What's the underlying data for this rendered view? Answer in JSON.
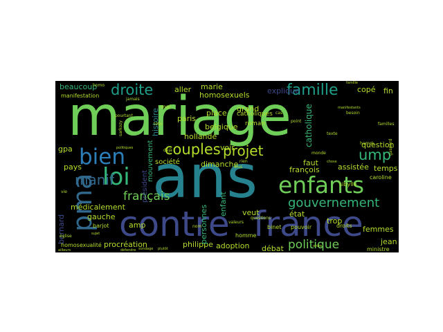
{
  "cloud": {
    "background": "#000000",
    "palette": [
      "#6ece58",
      "#35b779",
      "#1f9e89",
      "#26828e",
      "#31688e",
      "#3e4989",
      "#482878",
      "#440154",
      "#b5de2b",
      "#fde725"
    ],
    "words": [
      {
        "text": "mariage",
        "color": "#6ece58"
      },
      {
        "text": "ans",
        "color": "#26828e"
      },
      {
        "text": "contre",
        "color": "#3e4989"
      },
      {
        "text": "france",
        "color": "#3e4989"
      },
      {
        "text": "enfants",
        "color": "#6ece58"
      },
      {
        "text": "pma",
        "color": "#31688e"
      },
      {
        "text": "loi",
        "color": "#35b779"
      },
      {
        "text": "bien",
        "color": "#2c7fb8"
      },
      {
        "text": "couples",
        "color": "#b5de2b"
      },
      {
        "text": "projet",
        "color": "#b5de2b"
      },
      {
        "text": "famille",
        "color": "#1f9e89"
      },
      {
        "text": "droite",
        "color": "#1f9e89"
      },
      {
        "text": "ump",
        "color": "#35b779"
      },
      {
        "text": "manif",
        "color": "#31688e"
      },
      {
        "text": "gouvernement",
        "color": "#35b779"
      },
      {
        "text": "politique",
        "color": "#6ece58"
      },
      {
        "text": "français",
        "color": "#6ece58"
      },
      {
        "text": "histoire",
        "color": "#26828e"
      },
      {
        "text": "homosexuels",
        "color": "#b5de2b"
      },
      {
        "text": "explique",
        "color": "#3e4989"
      },
      {
        "text": "aller",
        "color": "#b5de2b"
      },
      {
        "text": "marie",
        "color": "#b5de2b"
      },
      {
        "text": "grand",
        "color": "#b5de2b"
      },
      {
        "text": "place",
        "color": "#b5de2b"
      },
      {
        "text": "paris",
        "color": "#b5de2b"
      },
      {
        "text": "belgique",
        "color": "#b5de2b"
      },
      {
        "text": "hollande",
        "color": "#b5de2b"
      },
      {
        "text": "catholiques",
        "color": "#b5de2b"
      },
      {
        "text": "roman",
        "color": "#b5de2b"
      },
      {
        "text": "voir",
        "color": "#b5de2b"
      },
      {
        "text": "dimanche",
        "color": "#b5de2b"
      },
      {
        "text": "société",
        "color": "#b5de2b"
      },
      {
        "text": "mouvement",
        "color": "#35b779"
      },
      {
        "text": "président",
        "color": "#3e4989"
      },
      {
        "text": "catholique",
        "color": "#35b779"
      },
      {
        "text": "faut",
        "color": "#b5de2b"
      },
      {
        "text": "françois",
        "color": "#b5de2b"
      },
      {
        "text": "assistée",
        "color": "#b5de2b"
      },
      {
        "text": "question",
        "color": "#b5de2b"
      },
      {
        "text": "temps",
        "color": "#b5de2b"
      },
      {
        "text": "copé",
        "color": "#b5de2b"
      },
      {
        "text": "fin",
        "color": "#b5de2b"
      },
      {
        "text": "beaucoup",
        "color": "#35b779"
      },
      {
        "text": "gpa",
        "color": "#b5de2b"
      },
      {
        "text": "pays",
        "color": "#b5de2b"
      },
      {
        "text": "médicalement",
        "color": "#b5de2b"
      },
      {
        "text": "gauche",
        "color": "#b5de2b"
      },
      {
        "text": "amp",
        "color": "#b5de2b"
      },
      {
        "text": "procréation",
        "color": "#b5de2b"
      },
      {
        "text": "philippe",
        "color": "#b5de2b"
      },
      {
        "text": "adoption",
        "color": "#b5de2b"
      },
      {
        "text": "débat",
        "color": "#b5de2b"
      },
      {
        "text": "personnes",
        "color": "#35b779"
      },
      {
        "text": "enfant",
        "color": "#35b779"
      },
      {
        "text": "veut",
        "color": "#b5de2b"
      },
      {
        "text": "état",
        "color": "#b5de2b"
      },
      {
        "text": "trop",
        "color": "#b5de2b"
      },
      {
        "text": "femmes",
        "color": "#b5de2b"
      },
      {
        "text": "jean",
        "color": "#b5de2b"
      },
      {
        "text": "bernard",
        "color": "#3e4989"
      },
      {
        "text": "manifestation",
        "color": "#b5de2b"
      },
      {
        "text": "homosexualité",
        "color": "#b5de2b"
      },
      {
        "text": "barjot",
        "color": "#b5de2b"
      },
      {
        "text": "mal",
        "color": "#b5de2b"
      },
      {
        "text": "binet",
        "color": "#b5de2b"
      },
      {
        "text": "homme",
        "color": "#b5de2b"
      },
      {
        "text": "pouvoir",
        "color": "#b5de2b"
      },
      {
        "text": "caroline",
        "color": "#b5de2b"
      },
      {
        "text": "ministre",
        "color": "#b5de2b"
      },
      {
        "text": "sibylle",
        "color": "#b5de2b"
      },
      {
        "text": "droits",
        "color": "#b5de2b"
      },
      {
        "text": "monde",
        "color": "#b5de2b"
      },
      {
        "text": "texte",
        "color": "#b5de2b"
      },
      {
        "text": "vie",
        "color": "#b5de2b"
      },
      {
        "text": "église",
        "color": "#b5de2b"
      },
      {
        "text": "cas",
        "color": "#b5de2b"
      },
      {
        "text": "point",
        "color": "#b5de2b"
      },
      {
        "text": "jamais",
        "color": "#b5de2b"
      },
      {
        "text": "tête",
        "color": "#b5de2b"
      },
      {
        "text": "déjà",
        "color": "#b5de2b"
      },
      {
        "text": "sarkozy",
        "color": "#b5de2b"
      },
      {
        "text": "pourtant",
        "color": "#b5de2b"
      },
      {
        "text": "nom",
        "color": "#b5de2b"
      },
      {
        "text": "élus",
        "color": "#b5de2b"
      },
      {
        "text": "rien",
        "color": "#b5de2b"
      },
      {
        "text": "besoin",
        "color": "#b5de2b"
      },
      {
        "text": "gaspard",
        "color": "#b5de2b"
      },
      {
        "text": "familles",
        "color": "#b5de2b"
      },
      {
        "text": "famille",
        "color": "#b5de2b"
      },
      {
        "text": "valeurs",
        "color": "#b5de2b"
      },
      {
        "text": "questions",
        "color": "#b5de2b"
      },
      {
        "text": "hamok",
        "color": "#b5de2b"
      },
      {
        "text": "homo",
        "color": "#b5de2b"
      },
      {
        "text": "politiques",
        "color": "#b5de2b"
      },
      {
        "text": "ailleurs",
        "color": "#b5de2b"
      },
      {
        "text": "défendre",
        "color": "#b5de2b"
      },
      {
        "text": "sondage",
        "color": "#b5de2b"
      },
      {
        "text": "plutôt",
        "color": "#b5de2b"
      },
      {
        "text": "manifestants",
        "color": "#b5de2b"
      },
      {
        "text": "chose",
        "color": "#b5de2b"
      },
      {
        "text": "ordre",
        "color": "#b5de2b"
      },
      {
        "text": "sujet",
        "color": "#b5de2b"
      }
    ]
  }
}
